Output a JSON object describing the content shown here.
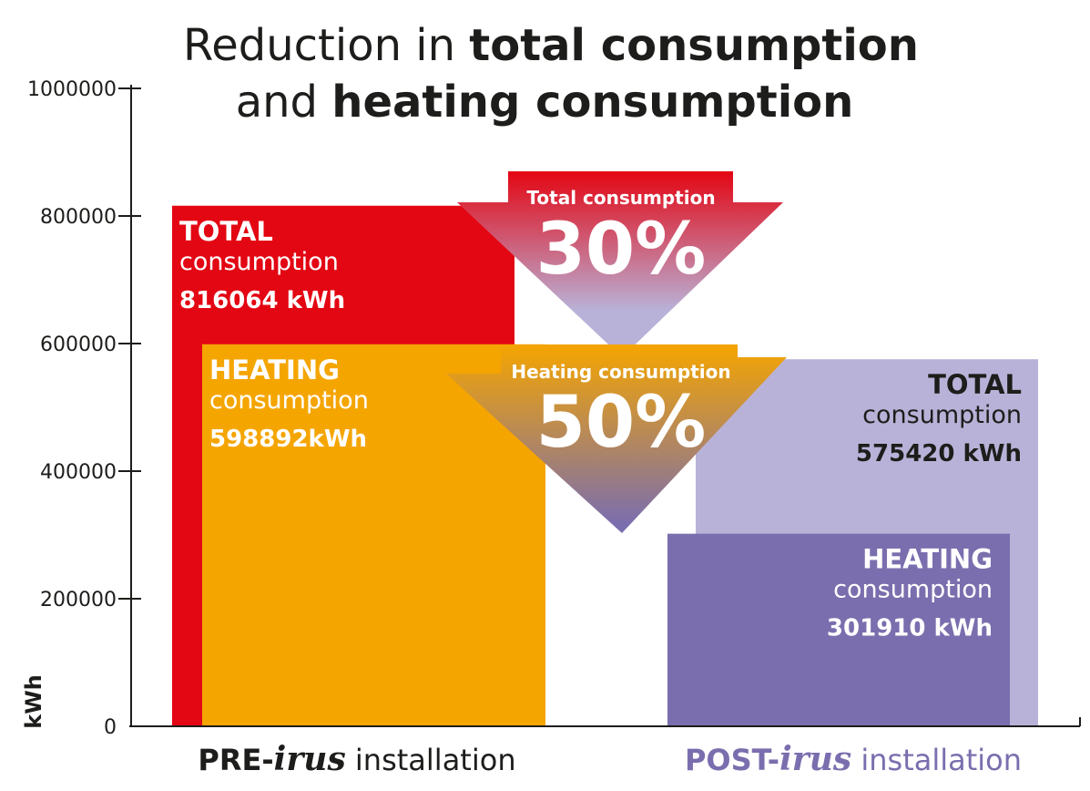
{
  "title": {
    "line1_light": "Reduction in ",
    "line1_bold": "total consumption",
    "line2_light": "and ",
    "line2_bold": "heating consumption"
  },
  "chart_data": {
    "type": "bar",
    "ylabel": "kWh",
    "ylim": [
      0,
      1000000
    ],
    "yticks": [
      "0",
      "200000",
      "400000",
      "600000",
      "800000",
      "1000000"
    ],
    "categories": [
      {
        "prefix": "PRE-",
        "brand": "irus",
        "suffix": " installation"
      },
      {
        "prefix": "POST-",
        "brand": "irus",
        "suffix": " installation"
      }
    ],
    "bars": [
      {
        "group": 0,
        "value": 816064,
        "title": "TOTAL",
        "sub": "consumption",
        "value_label": "816064 kWh",
        "color": "#e30613"
      },
      {
        "group": 0,
        "value": 598892,
        "title": "HEATING",
        "sub": "consumption",
        "value_label": "598892kWh",
        "color": "#f5a500"
      },
      {
        "group": 1,
        "value": 575420,
        "title": "TOTAL",
        "sub": "consumption",
        "value_label": "575420 kWh",
        "color": "#b9b2d8"
      },
      {
        "group": 1,
        "value": 301910,
        "title": "HEATING",
        "sub": "consumption",
        "value_label": "301910 kWh",
        "color": "#7b6eae"
      }
    ],
    "reductions": [
      {
        "label": "Total consumption",
        "percent": "30%",
        "from_color": "#e30613",
        "to_color": "#b9b2d8"
      },
      {
        "label": "Heating consumption",
        "percent": "50%",
        "from_color": "#f5a500",
        "to_color": "#7b6eae"
      }
    ]
  },
  "colors": {
    "text_dark": "#1d1d1b",
    "post_label": "#7b6eae",
    "white": "#ffffff"
  }
}
